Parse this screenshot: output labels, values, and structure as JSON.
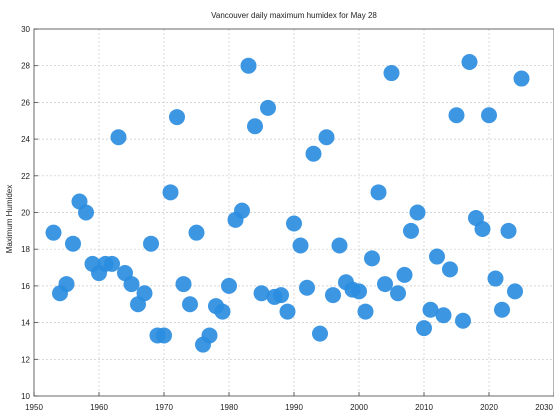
{
  "chart_data": {
    "type": "scatter",
    "title": "Vancouver daily maximum humidex for May 28",
    "xlabel": "",
    "ylabel": "Maximum Humidex",
    "xlim": [
      1950,
      2030
    ],
    "ylim": [
      10,
      30
    ],
    "xticks": [
      1950,
      1960,
      1970,
      1980,
      1990,
      2000,
      2010,
      2020,
      2030
    ],
    "yticks": [
      10,
      12,
      14,
      16,
      18,
      20,
      22,
      24,
      26,
      28,
      30
    ],
    "grid": true,
    "marker_color": "#2b8de0",
    "points": [
      {
        "x": 1953,
        "y": 18.9
      },
      {
        "x": 1954,
        "y": 15.6
      },
      {
        "x": 1955,
        "y": 16.1
      },
      {
        "x": 1956,
        "y": 18.3
      },
      {
        "x": 1957,
        "y": 20.6
      },
      {
        "x": 1958,
        "y": 20.0
      },
      {
        "x": 1959,
        "y": 17.2
      },
      {
        "x": 1960,
        "y": 16.7
      },
      {
        "x": 1961,
        "y": 17.2
      },
      {
        "x": 1962,
        "y": 17.2
      },
      {
        "x": 1963,
        "y": 24.1
      },
      {
        "x": 1964,
        "y": 16.7
      },
      {
        "x": 1965,
        "y": 16.1
      },
      {
        "x": 1966,
        "y": 15.0
      },
      {
        "x": 1967,
        "y": 15.6
      },
      {
        "x": 1968,
        "y": 18.3
      },
      {
        "x": 1969,
        "y": 13.3
      },
      {
        "x": 1970,
        "y": 13.3
      },
      {
        "x": 1971,
        "y": 21.1
      },
      {
        "x": 1972,
        "y": 25.2
      },
      {
        "x": 1973,
        "y": 16.1
      },
      {
        "x": 1974,
        "y": 15.0
      },
      {
        "x": 1975,
        "y": 18.9
      },
      {
        "x": 1976,
        "y": 12.8
      },
      {
        "x": 1977,
        "y": 13.3
      },
      {
        "x": 1978,
        "y": 14.9
      },
      {
        "x": 1979,
        "y": 14.6
      },
      {
        "x": 1980,
        "y": 16.0
      },
      {
        "x": 1981,
        "y": 19.6
      },
      {
        "x": 1982,
        "y": 20.1
      },
      {
        "x": 1983,
        "y": 28.0
      },
      {
        "x": 1984,
        "y": 24.7
      },
      {
        "x": 1985,
        "y": 15.6
      },
      {
        "x": 1986,
        "y": 25.7
      },
      {
        "x": 1987,
        "y": 15.4
      },
      {
        "x": 1988,
        "y": 15.5
      },
      {
        "x": 1989,
        "y": 14.6
      },
      {
        "x": 1990,
        "y": 19.4
      },
      {
        "x": 1991,
        "y": 18.2
      },
      {
        "x": 1992,
        "y": 15.9
      },
      {
        "x": 1993,
        "y": 23.2
      },
      {
        "x": 1994,
        "y": 13.4
      },
      {
        "x": 1995,
        "y": 24.1
      },
      {
        "x": 1996,
        "y": 15.5
      },
      {
        "x": 1997,
        "y": 18.2
      },
      {
        "x": 1998,
        "y": 16.2
      },
      {
        "x": 1999,
        "y": 15.8
      },
      {
        "x": 2000,
        "y": 15.7
      },
      {
        "x": 2001,
        "y": 14.6
      },
      {
        "x": 2002,
        "y": 17.5
      },
      {
        "x": 2003,
        "y": 21.1
      },
      {
        "x": 2004,
        "y": 16.1
      },
      {
        "x": 2005,
        "y": 27.6
      },
      {
        "x": 2006,
        "y": 15.6
      },
      {
        "x": 2007,
        "y": 16.6
      },
      {
        "x": 2008,
        "y": 19.0
      },
      {
        "x": 2009,
        "y": 20.0
      },
      {
        "x": 2010,
        "y": 13.7
      },
      {
        "x": 2011,
        "y": 14.7
      },
      {
        "x": 2012,
        "y": 17.6
      },
      {
        "x": 2013,
        "y": 14.4
      },
      {
        "x": 2014,
        "y": 16.9
      },
      {
        "x": 2015,
        "y": 25.3
      },
      {
        "x": 2016,
        "y": 14.1
      },
      {
        "x": 2017,
        "y": 28.2
      },
      {
        "x": 2018,
        "y": 19.7
      },
      {
        "x": 2019,
        "y": 19.1
      },
      {
        "x": 2020,
        "y": 25.3
      },
      {
        "x": 2021,
        "y": 16.4
      },
      {
        "x": 2022,
        "y": 14.7
      },
      {
        "x": 2023,
        "y": 19.0
      },
      {
        "x": 2024,
        "y": 15.7
      },
      {
        "x": 2025,
        "y": 27.3
      }
    ]
  }
}
